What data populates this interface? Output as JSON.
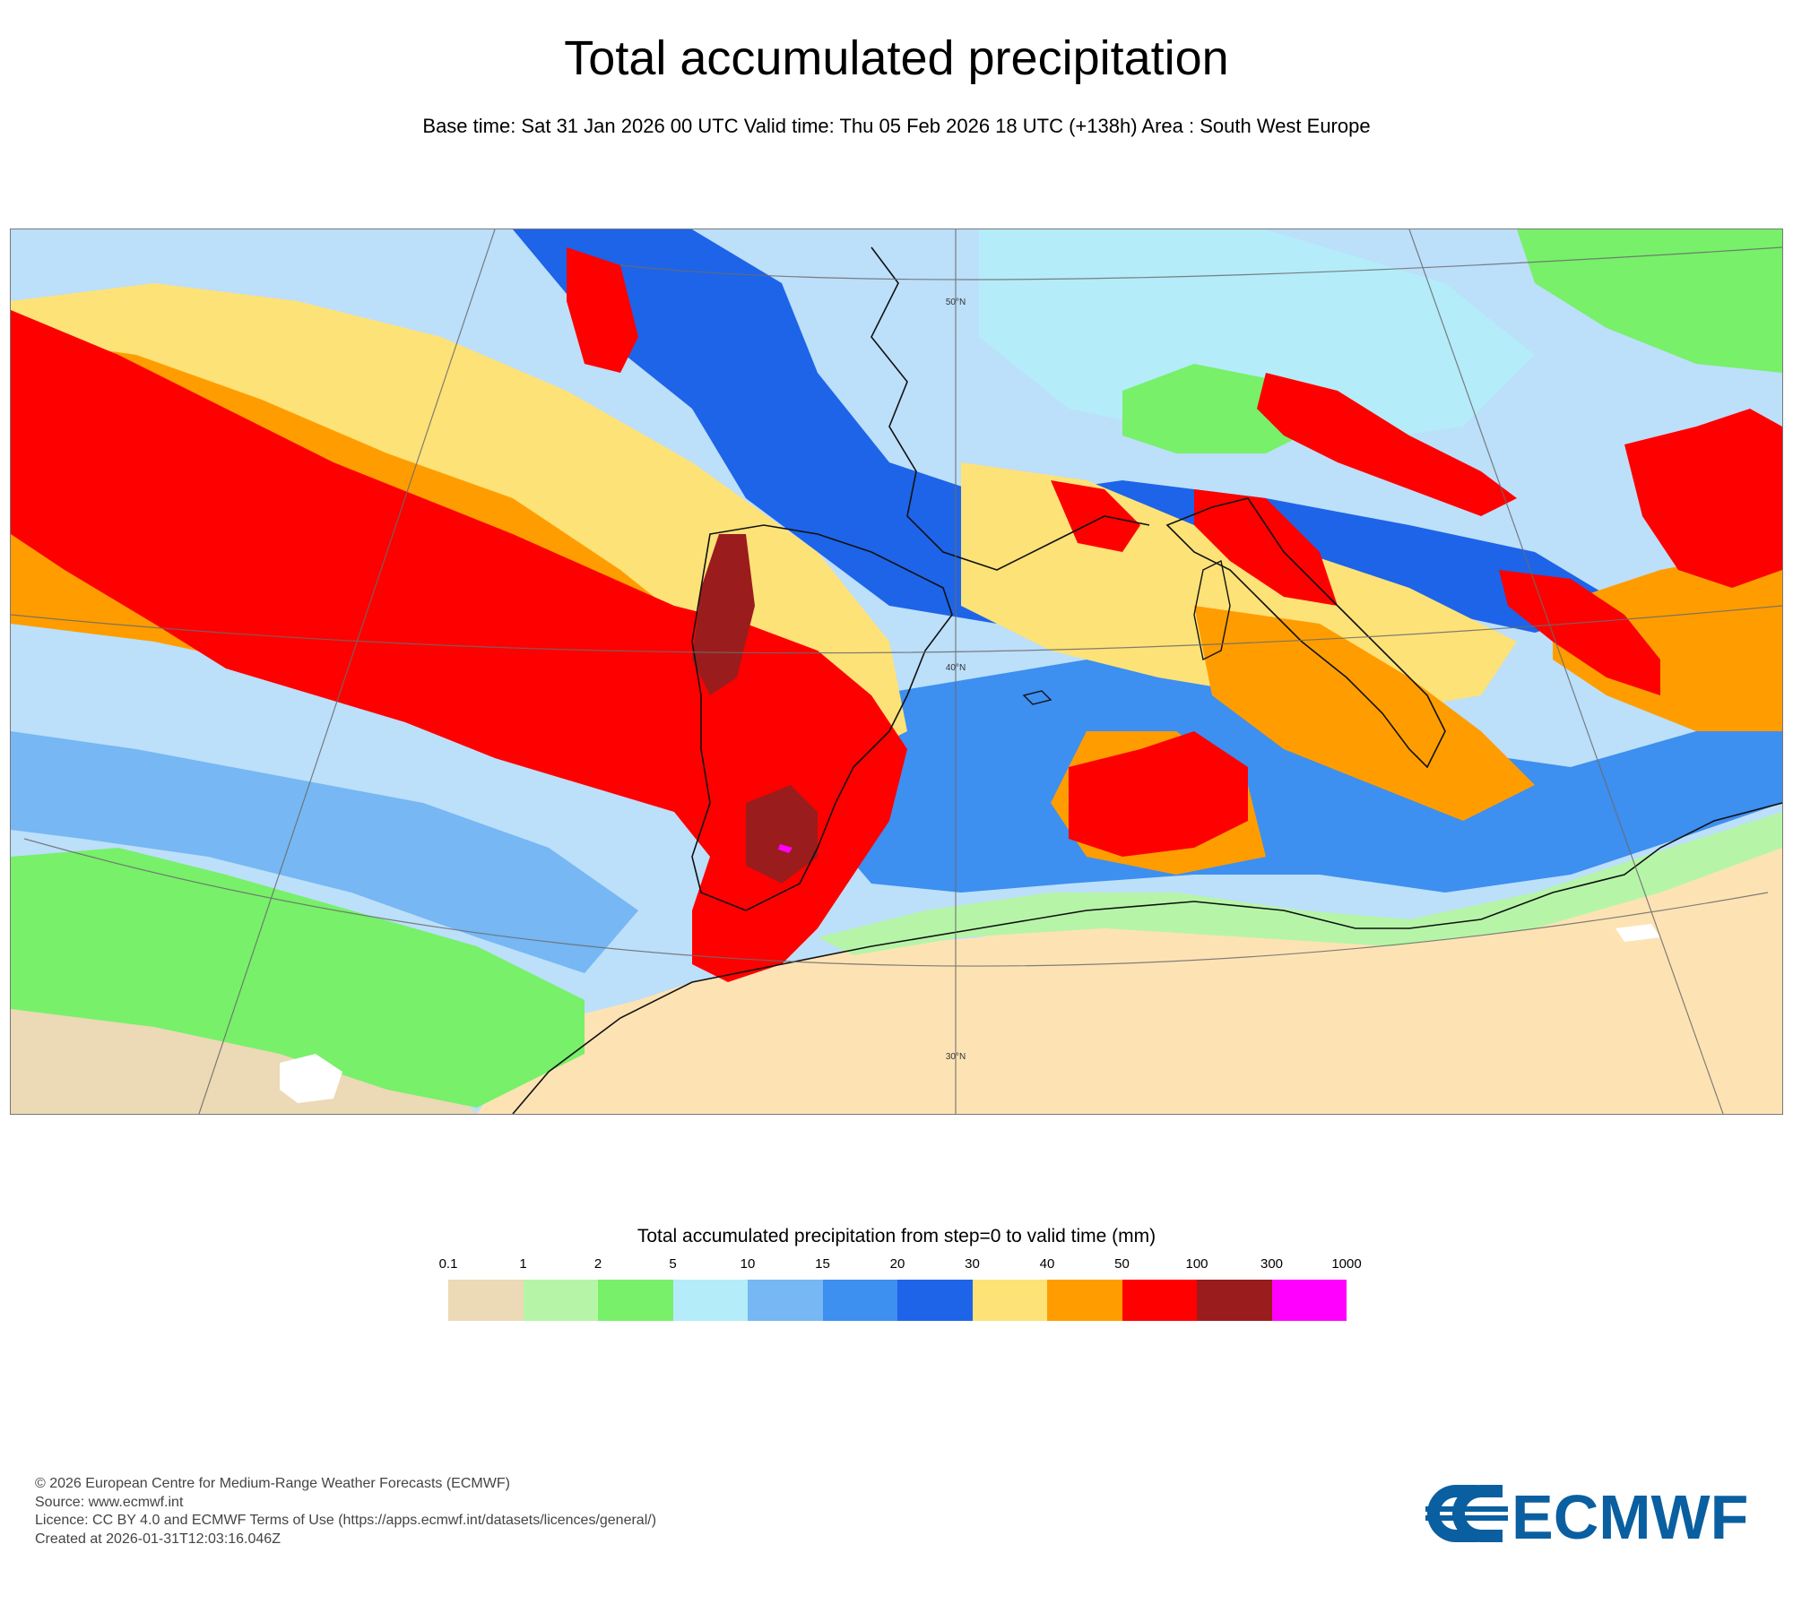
{
  "title": "Total accumulated precipitation",
  "subtitle": "Base time: Sat 31 Jan 2026 00 UTC Valid time: Thu 05 Feb 2026 18 UTC (+138h) Area : South West Europe",
  "map": {
    "lat_labels": [
      "50°N",
      "40°N",
      "30°N"
    ],
    "colors": {
      "ocean": "#bcdffa",
      "land_dry": "#fde3b4",
      "coast": "#111111",
      "graticule": "#6b6b6b"
    }
  },
  "legend": {
    "title": "Total accumulated precipitation from step=0 to valid time (mm)",
    "ticks": [
      "0.1",
      "1",
      "2",
      "5",
      "10",
      "15",
      "20",
      "30",
      "40",
      "50",
      "100",
      "300",
      "1000"
    ],
    "colors": [
      "#ecd9b6",
      "#b6f5a8",
      "#78f06a",
      "#b4ecf9",
      "#76b7f4",
      "#3d8ff0",
      "#1d64e8",
      "#fde278",
      "#ff9d00",
      "#ff0000",
      "#9b1c1c",
      "#ff00ff"
    ]
  },
  "footer": {
    "copyright": "© 2026 European Centre for Medium-Range Weather Forecasts (ECMWF)",
    "source": "Source: www.ecmwf.int",
    "licence": "Licence: CC BY 4.0 and ECMWF Terms of Use (https://apps.ecmwf.int/datasets/licences/general/)",
    "created": "Created at 2026-01-31T12:03:16.046Z"
  },
  "logo": {
    "text": "ECMWF",
    "color": "#0a5fa0"
  }
}
